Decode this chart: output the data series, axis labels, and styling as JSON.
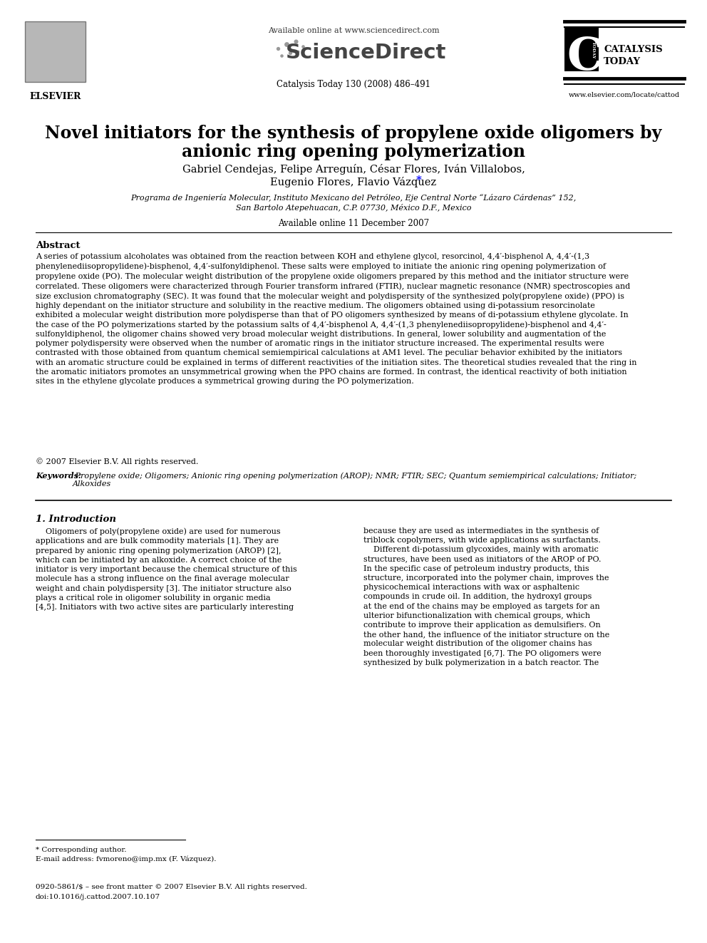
{
  "bg_color": "#ffffff",
  "title_line1": "Novel initiators for the synthesis of propylene oxide oligomers by",
  "title_line2": "anionic ring opening polymerization",
  "authors_line1": "Gabriel Cendejas, Felipe Arreguín, César Flores, Iván Villalobos,",
  "authors_line2": "Eugenio Flores, Flavio Vázquez",
  "authors_star": "*",
  "affiliation_line1": "Programa de Ingeniería Molecular, Instituto Mexicano del Petróleo, Eje Central Norte “Lázaro Cárdenas” 152,",
  "affiliation_line2": "San Bartolo Atepehuacan, C.P. 07730, México D.F., Mexico",
  "available_online": "Available online 11 December 2007",
  "journal_info": "Catalysis Today 130 (2008) 486–491",
  "sd_available": "Available online at www.sciencedirect.com",
  "elsevier_text": "ELSEVIER",
  "catalysis_text1": "CATALYSIS",
  "catalysis_text2": "TODAY",
  "website": "www.elsevier.com/locate/cattod",
  "abstract_title": "Abstract",
  "abstract_text": "A series of potassium alcoholates was obtained from the reaction between KOH and ethylene glycol, resorcinol, 4,4′-bisphenol A, 4,4′-(1,3\nphenylenediisopropylidene)-bisphenol, 4,4′-sulfonyldiphenol. These salts were employed to initiate the anionic ring opening polymerization of\npropylene oxide (PO). The molecular weight distribution of the propylene oxide oligomers prepared by this method and the initiator structure were\ncorrelated. These oligomers were characterized through Fourier transform infrared (FTIR), nuclear magnetic resonance (NMR) spectroscopies and\nsize exclusion chromatography (SEC). It was found that the molecular weight and polydispersity of the synthesized poly(propylene oxide) (PPO) is\nhighly dependant on the initiator structure and solubility in the reactive medium. The oligomers obtained using di-potassium resorcinolate\nexhibited a molecular weight distribution more polydisperse than that of PO oligomers synthesized by means of di-potassium ethylene glycolate. In\nthe case of the PO polymerizations started by the potassium salts of 4,4′-bisphenol A, 4,4′-(1,3 phenylenediisopropylidene)-bisphenol and 4,4′-\nsulfonyldiphenol, the oligomer chains showed very broad molecular weight distributions. In general, lower solubility and augmentation of the\npolymer polydispersity were observed when the number of aromatic rings in the initiator structure increased. The experimental results were\ncontrasted with those obtained from quantum chemical semiempirical calculations at AM1 level. The peculiar behavior exhibited by the initiators\nwith an aromatic structure could be explained in terms of different reactivities of the initiation sites. The theoretical studies revealed that the ring in\nthe aromatic initiators promotes an unsymmetrical growing when the PPO chains are formed. In contrast, the identical reactivity of both initiation\nsites in the ethylene glycolate produces a symmetrical growing during the PO polymerization.",
  "copyright": "© 2007 Elsevier B.V. All rights reserved.",
  "keywords_label": "Keywords:",
  "keywords_text": " Propylene oxide; Oligomers; Anionic ring opening polymerization (AROP); NMR; FTIR; SEC; Quantum semiempirical calculations; Initiator;\nAlkoxides",
  "section1_title": "1. Introduction",
  "section1_col1_para1": "    Oligomers of poly(propylene oxide) are used for numerous\napplications and are bulk commodity materials [1]. They are\nprepared by anionic ring opening polymerization (AROP) [2],\nwhich can be initiated by an alkoxide. A correct choice of the\ninitiator is very important because the chemical structure of this\nmolecule has a strong influence on the final average molecular\nweight and chain polydispersity [3]. The initiator structure also\nplays a critical role in oligomer solubility in organic media\n[4,5]. Initiators with two active sites are particularly interesting",
  "section1_col2_para1": "because they are used as intermediates in the synthesis of\ntriblock copolymers, with wide applications as surfactants.\n    Different di-potassium glycoxides, mainly with aromatic\nstructures, have been used as initiators of the AROP of PO.\nIn the specific case of petroleum industry products, this\nstructure, incorporated into the polymer chain, improves the\nphysicochemical interactions with wax or asphaltenic\ncompounds in crude oil. In addition, the hydroxyl groups\nat the end of the chains may be employed as targets for an\nulterior bifunctionalization with chemical groups, which\ncontribute to improve their application as demulsifiers. On\nthe other hand, the influence of the initiator structure on the\nmolecular weight distribution of the oligomer chains has\nbeen thoroughly investigated [6,7]. The PO oligomers were\nsynthesized by bulk polymerization in a batch reactor. The",
  "footnote_corresponding": "* Corresponding author.",
  "footnote_email": "E-mail address: fvmoreno@imp.mx (F. Vázquez).",
  "footer_text1": "0920-5861/$ – see front matter © 2007 Elsevier B.V. All rights reserved.",
  "footer_text2": "doi:10.1016/j.cattod.2007.10.107"
}
